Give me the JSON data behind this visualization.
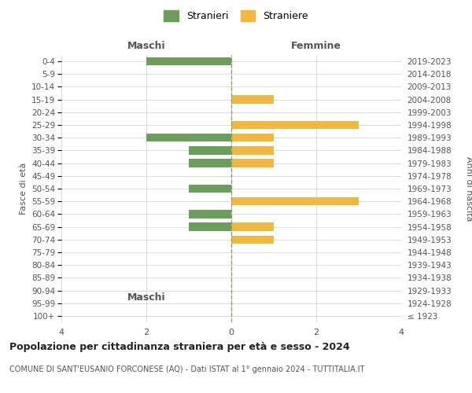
{
  "age_groups": [
    "100+",
    "95-99",
    "90-94",
    "85-89",
    "80-84",
    "75-79",
    "70-74",
    "65-69",
    "60-64",
    "55-59",
    "50-54",
    "45-49",
    "40-44",
    "35-39",
    "30-34",
    "25-29",
    "20-24",
    "15-19",
    "10-14",
    "5-9",
    "0-4"
  ],
  "birth_years": [
    "≤ 1923",
    "1924-1928",
    "1929-1933",
    "1934-1938",
    "1939-1943",
    "1944-1948",
    "1949-1953",
    "1954-1958",
    "1959-1963",
    "1964-1968",
    "1969-1973",
    "1974-1978",
    "1979-1983",
    "1984-1988",
    "1989-1993",
    "1994-1998",
    "1999-2003",
    "2004-2008",
    "2009-2013",
    "2014-2018",
    "2019-2023"
  ],
  "maschi": [
    0,
    0,
    0,
    0,
    0,
    0,
    0,
    1,
    1,
    0,
    1,
    0,
    1,
    1,
    2,
    0,
    0,
    0,
    0,
    0,
    2
  ],
  "femmine": [
    0,
    0,
    0,
    0,
    0,
    0,
    1,
    1,
    0,
    3,
    0,
    0,
    1,
    1,
    1,
    3,
    0,
    1,
    0,
    0,
    0
  ],
  "maschi_color": "#6a9e5a",
  "femmine_color": "#f0b840",
  "title": "Popolazione per cittadinanza straniera per età e sesso - 2024",
  "subtitle": "COMUNE DI SANT'EUSANIO FORCONESE (AQ) - Dati ISTAT al 1° gennaio 2024 - TUTTITALIA.IT",
  "xlabel_left": "Maschi",
  "xlabel_right": "Femmine",
  "ylabel_left": "Fasce di età",
  "ylabel_right": "Anni di nascita",
  "legend_maschi": "Stranieri",
  "legend_femmine": "Straniere",
  "xlim": 4,
  "background_color": "#ffffff",
  "grid_color": "#cccccc"
}
